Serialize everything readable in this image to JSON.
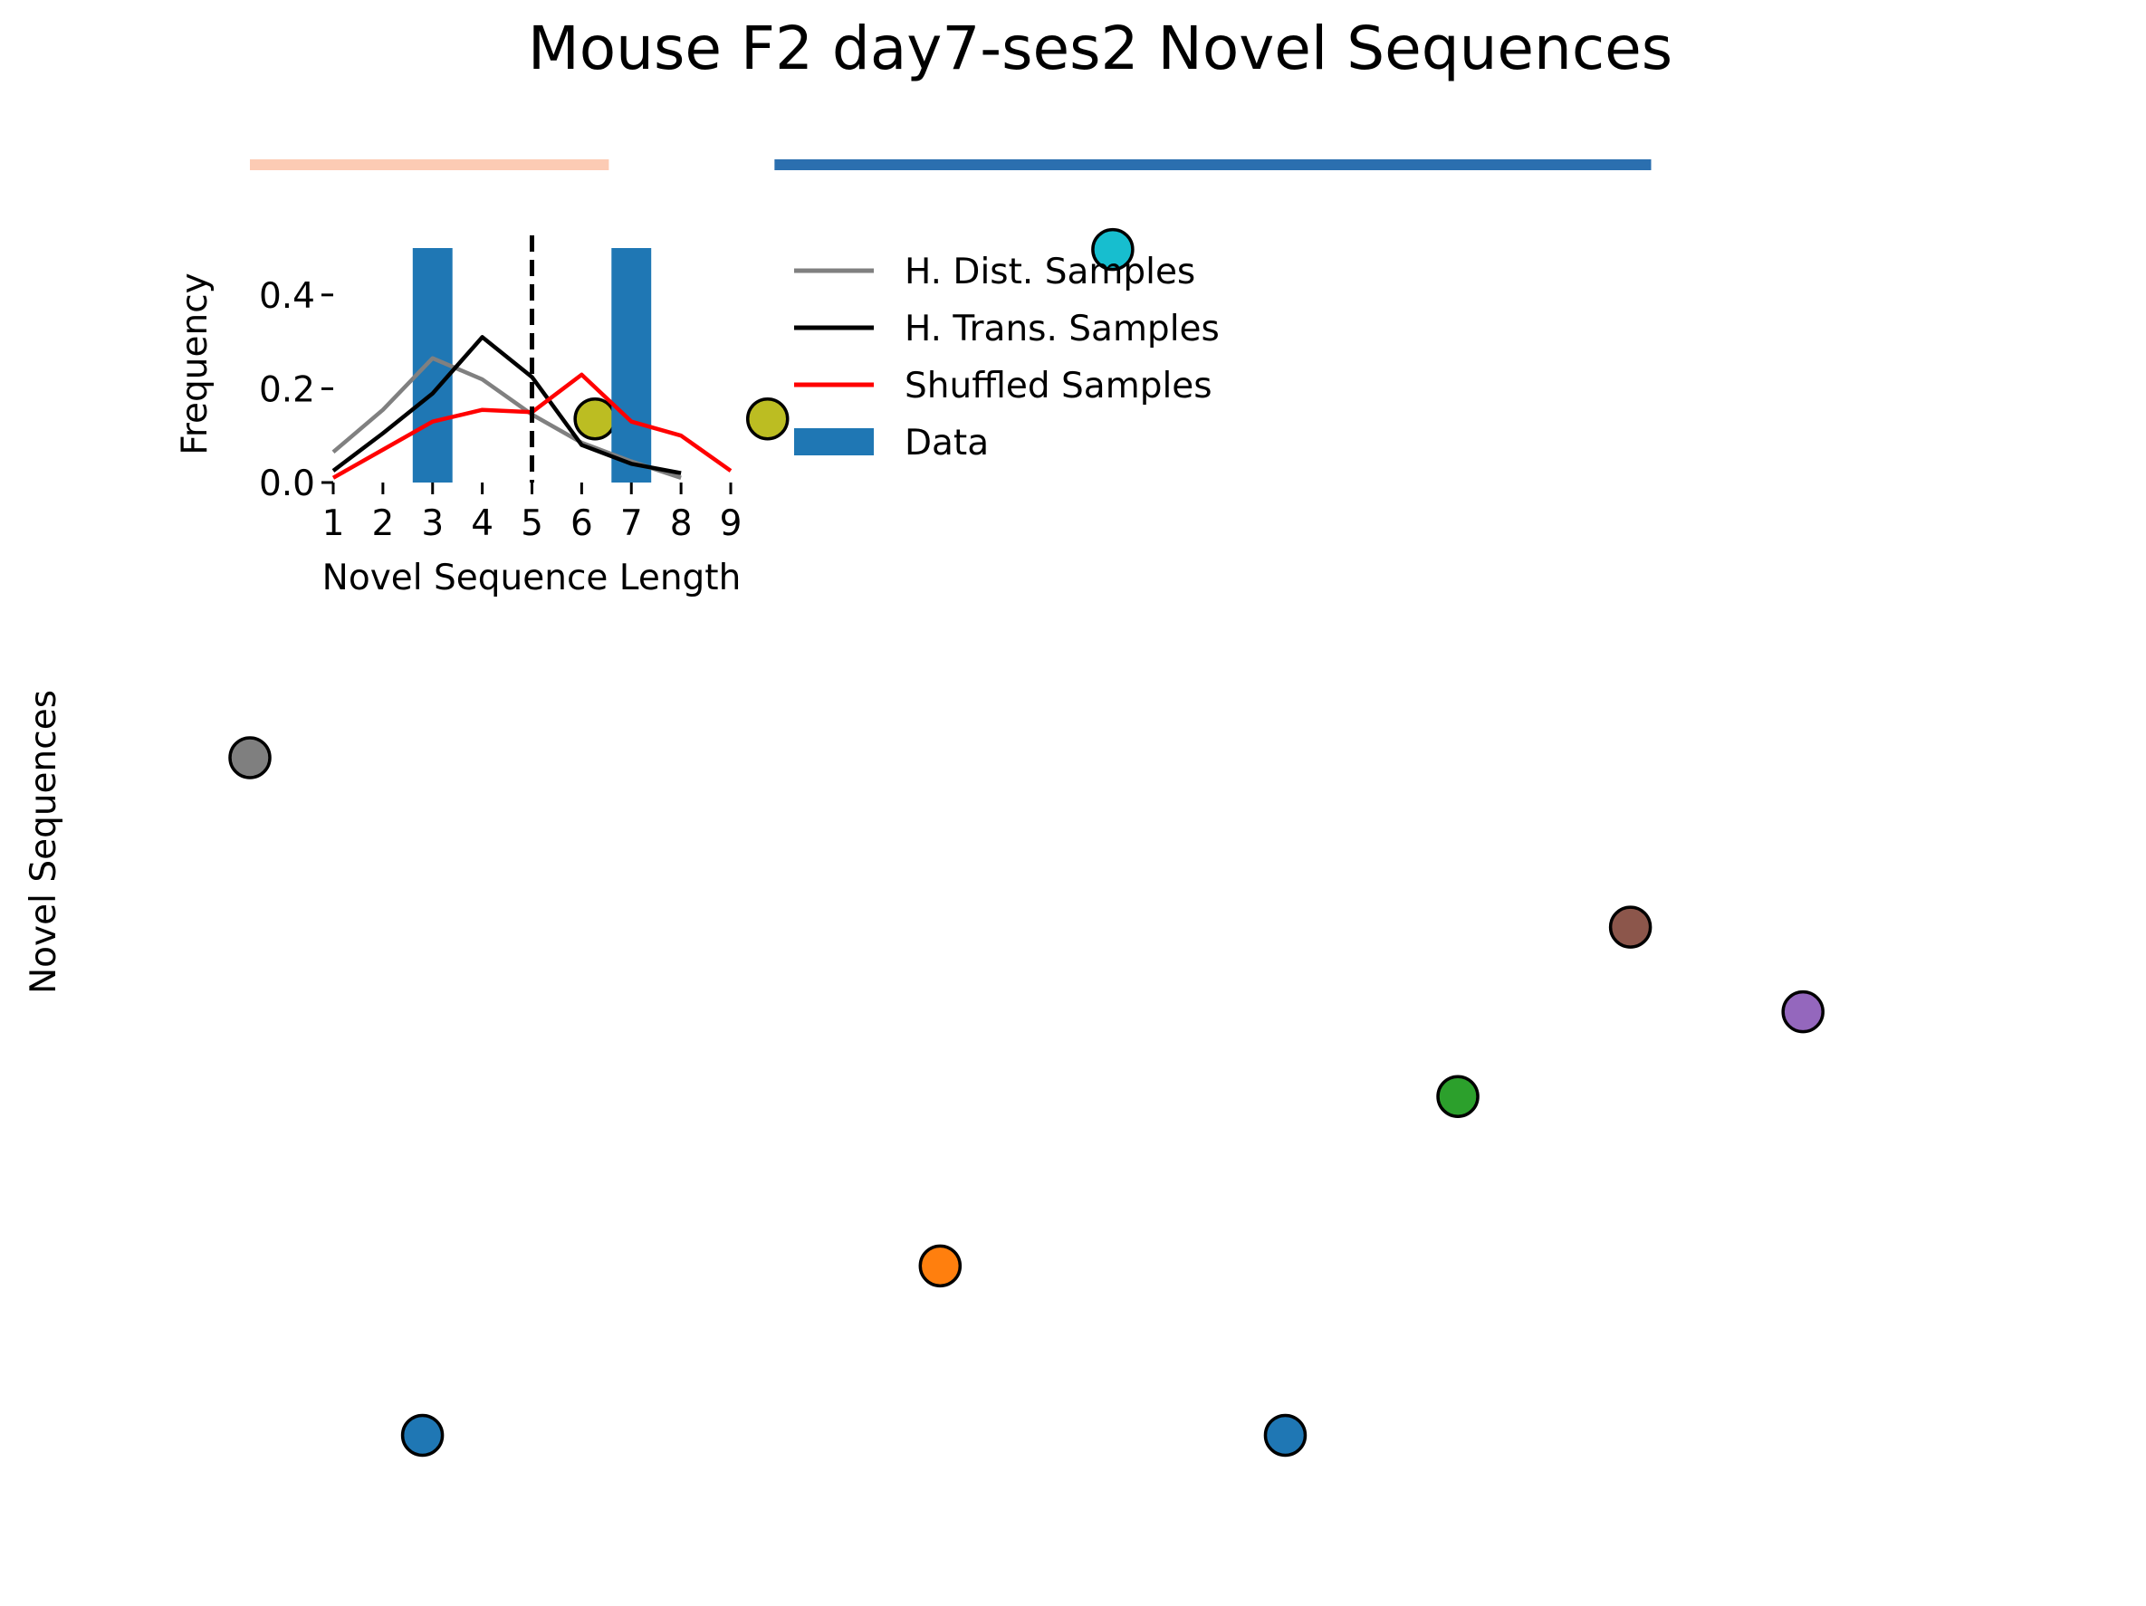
{
  "chart_data": [
    {
      "type": "scatter",
      "title": "Mouse F2 day7-ses2 Novel Sequences",
      "ylabel": "Novel Sequences",
      "xlabel": "",
      "grid": false,
      "axes_visible": false,
      "ylim": [
        -0.5,
        7.5
      ],
      "xlim": [
        0,
        26
      ],
      "group_bars": [
        {
          "color": "#fccbb4",
          "x_start": 0.0,
          "x_end": 5.2
        },
        {
          "color": "#2b6faf",
          "x_start": 7.6,
          "x_end": 20.3
        }
      ],
      "points": [
        {
          "x": 0.0,
          "y": 4,
          "color": "#7f7f7f"
        },
        {
          "x": 2.5,
          "y": 0,
          "color": "#1f77b4"
        },
        {
          "x": 5.0,
          "y": 6,
          "color": "#bcbd22"
        },
        {
          "x": 7.5,
          "y": 6,
          "color": "#bcbd22"
        },
        {
          "x": 10.0,
          "y": 1,
          "color": "#ff7f0e"
        },
        {
          "x": 12.5,
          "y": 7,
          "color": "#17becf"
        },
        {
          "x": 15.0,
          "y": 0,
          "color": "#1f77b4"
        },
        {
          "x": 17.5,
          "y": 2,
          "color": "#2ca02c"
        },
        {
          "x": 20.0,
          "y": 3,
          "color": "#8c564b"
        },
        {
          "x": 22.5,
          "y": 2.5,
          "color": "#9467bd"
        }
      ]
    },
    {
      "type": "bar+line",
      "title": "",
      "xlabel": "Novel Sequence Length",
      "ylabel": "Frequency",
      "categories": [
        "1",
        "2",
        "3",
        "4",
        "5",
        "6",
        "7",
        "8",
        "9"
      ],
      "xlim": [
        1,
        9
      ],
      "ylim": [
        0,
        0.5
      ],
      "yticks": [
        "0.0",
        "0.2",
        "0.4"
      ],
      "ytick_values": [
        0,
        0.2,
        0.4
      ],
      "threshold_x": 5,
      "bars": {
        "name": "Data",
        "color": "#1f77b4",
        "x": [
          3,
          7
        ],
        "values": [
          0.5,
          0.5
        ]
      },
      "series": [
        {
          "name": "H. Dist. Samples",
          "color": "#808080",
          "x": [
            1,
            2,
            3,
            4,
            5,
            6,
            7,
            8
          ],
          "values": [
            0.065,
            0.155,
            0.265,
            0.22,
            0.145,
            0.085,
            0.045,
            0.01
          ]
        },
        {
          "name": "H. Trans. Samples",
          "color": "#000000",
          "x": [
            1,
            2,
            3,
            4,
            5,
            6,
            7,
            8
          ],
          "values": [
            0.025,
            0.105,
            0.19,
            0.31,
            0.225,
            0.08,
            0.04,
            0.02
          ]
        },
        {
          "name": "Shuffled Samples",
          "color": "#ff0000",
          "x": [
            1,
            2,
            3,
            4,
            5,
            6,
            7,
            8,
            9
          ],
          "values": [
            0.01,
            0.07,
            0.13,
            0.155,
            0.15,
            0.23,
            0.13,
            0.1,
            0.025
          ]
        }
      ],
      "legend": {
        "position": "upper-right-outside",
        "entries": [
          {
            "label": "H. Dist. Samples",
            "color": "#808080",
            "kind": "line"
          },
          {
            "label": "H. Trans. Samples",
            "color": "#000000",
            "kind": "line"
          },
          {
            "label": "Shuffled Samples",
            "color": "#ff0000",
            "kind": "line"
          },
          {
            "label": "Data",
            "color": "#1f77b4",
            "kind": "patch"
          }
        ]
      }
    }
  ]
}
